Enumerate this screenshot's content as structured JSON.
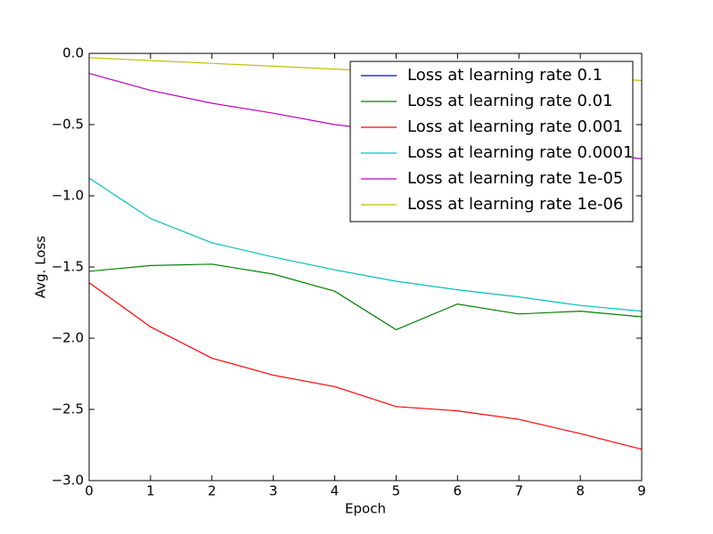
{
  "chart_data": {
    "type": "line",
    "xlabel": "Epoch",
    "ylabel": "Avg. Loss",
    "x": [
      0,
      1,
      2,
      3,
      4,
      5,
      6,
      7,
      8,
      9
    ],
    "xlim": [
      0,
      9
    ],
    "xticks": [
      0,
      1,
      2,
      3,
      4,
      5,
      6,
      7,
      8,
      9
    ],
    "ylim": [
      -3.0,
      0.0
    ],
    "yticks": [
      {
        "value": -3.0,
        "label": "−3.0"
      },
      {
        "value": -2.5,
        "label": "−2.5"
      },
      {
        "value": -2.0,
        "label": "−2.0"
      },
      {
        "value": -1.5,
        "label": "−1.5"
      },
      {
        "value": -1.0,
        "label": "−1.0"
      },
      {
        "value": -0.5,
        "label": "−0.5"
      },
      {
        "value": 0.0,
        "label": "0.0"
      }
    ],
    "legend": "upper right",
    "series": [
      {
        "name": "Loss at learning rate 0.1",
        "color": "#0000ff",
        "values": [
          null,
          null,
          null,
          null,
          null,
          null,
          null,
          null,
          null,
          null
        ]
      },
      {
        "name": "Loss at learning rate 0.01",
        "color": "#008000",
        "values": [
          -1.53,
          -1.49,
          -1.48,
          -1.55,
          -1.67,
          -1.94,
          -1.76,
          -1.83,
          -1.81,
          -1.85
        ]
      },
      {
        "name": "Loss at learning rate 0.001",
        "color": "#ff0000",
        "values": [
          -1.61,
          -1.92,
          -2.14,
          -2.26,
          -2.34,
          -2.48,
          -2.51,
          -2.57,
          -2.67,
          -2.78
        ]
      },
      {
        "name": "Loss at learning rate 0.0001",
        "color": "#00bfbf",
        "values": [
          -0.875,
          -1.16,
          -1.33,
          -1.43,
          -1.52,
          -1.6,
          -1.66,
          -1.71,
          -1.77,
          -1.81
        ]
      },
      {
        "name": "Loss at learning rate 1e-05",
        "color": "#bf00bf",
        "values": [
          -0.14,
          -0.26,
          -0.35,
          -0.42,
          -0.5,
          -0.55,
          -0.6,
          -0.64,
          -0.69,
          -0.74
        ]
      },
      {
        "name": "Loss at learning rate 1e-06",
        "color": "#bfbf00",
        "values": [
          -0.03,
          -0.05,
          -0.07,
          -0.09,
          -0.11,
          -0.13,
          -0.14,
          -0.16,
          -0.17,
          -0.19
        ]
      }
    ]
  }
}
